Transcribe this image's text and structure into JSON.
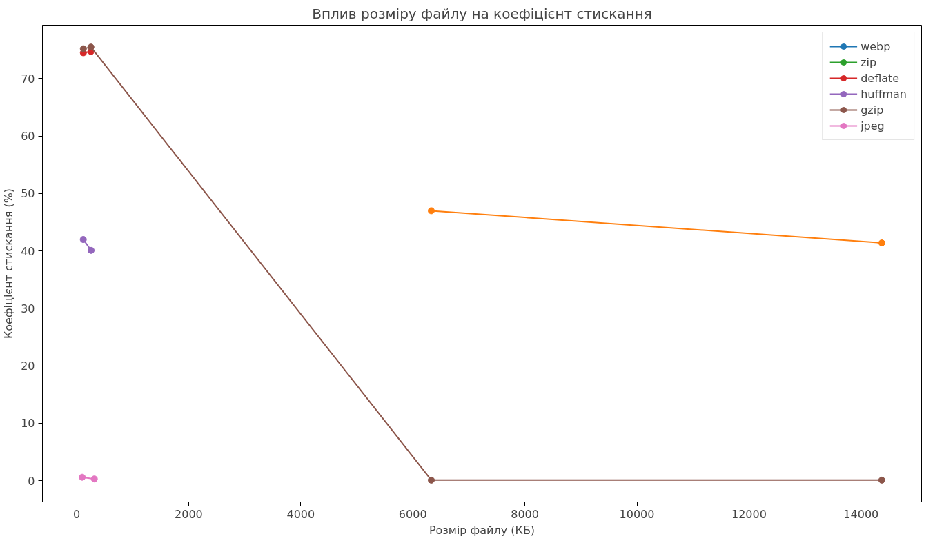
{
  "chart_data": {
    "type": "line",
    "title": "Вплив розміру файлу на коефіцієнт стискання",
    "xlabel": "Розмір файлу (КБ)",
    "ylabel": "Коефіцієнт стискання (%)",
    "xlim": [
      -610,
      15080
    ],
    "ylim": [
      -3.7,
      79.3
    ],
    "xticks": [
      0,
      2000,
      4000,
      6000,
      8000,
      10000,
      12000,
      14000
    ],
    "yticks": [
      0,
      10,
      20,
      30,
      40,
      50,
      60,
      70
    ],
    "grid": false,
    "legend": "top right",
    "marker": "circle",
    "line_style": "solid",
    "series": [
      {
        "name": "webp",
        "color": "#1f77b4"
      },
      {
        "color": "#ff7f0e",
        "x": [
          6330,
          14370
        ],
        "values": [
          47.0,
          41.4
        ]
      },
      {
        "name": "zip",
        "color": "#2ca02c"
      },
      {
        "name": "deflate",
        "color": "#d62728",
        "x": [
          120,
          255
        ],
        "values": [
          74.5,
          74.7
        ]
      },
      {
        "name": "huffman",
        "color": "#9467bd",
        "x": [
          119,
          259
        ],
        "values": [
          42.0,
          40.1
        ]
      },
      {
        "name": "gzip",
        "color": "#8c564b",
        "x": [
          120,
          255,
          6330,
          14370
        ],
        "values": [
          75.2,
          75.5,
          0.1,
          0.1
        ]
      },
      {
        "name": "jpeg",
        "color": "#e377c2",
        "x": [
          100,
          316
        ],
        "values": [
          0.6,
          0.3
        ]
      }
    ]
  }
}
